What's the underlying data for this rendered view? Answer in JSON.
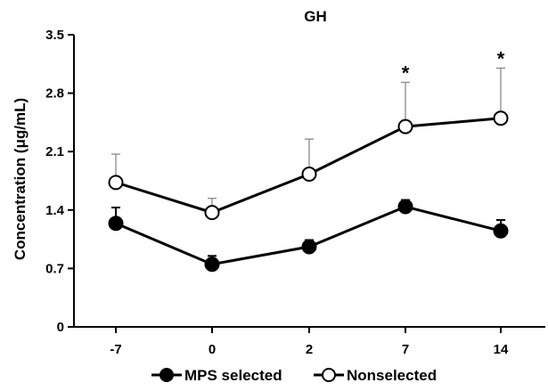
{
  "chart_data": {
    "type": "line",
    "title": "GH",
    "xlabel": "",
    "ylabel": "Concentration (μg/mL)",
    "categories": [
      "-7",
      "0",
      "2",
      "7",
      "14"
    ],
    "ylim": [
      0,
      3.5
    ],
    "yticks": [
      "0",
      "0.7",
      "1.4",
      "2.1",
      "2.8",
      "3.5"
    ],
    "grid": false,
    "legend_position": "bottom",
    "series": [
      {
        "name": "MPS selected",
        "marker": "filled-circle",
        "color": "#000000",
        "values": [
          1.24,
          0.75,
          0.96,
          1.44,
          1.15
        ],
        "error": [
          0.19,
          0.1,
          0.08,
          0.08,
          0.13
        ],
        "error_direction": "up"
      },
      {
        "name": "Nonselected",
        "marker": "open-circle",
        "color": "#000000",
        "values": [
          1.73,
          1.37,
          1.83,
          2.4,
          2.5
        ],
        "error": [
          0.34,
          0.17,
          0.42,
          0.53,
          0.6
        ],
        "error_direction": "up"
      }
    ],
    "annotations": [
      {
        "category": "7",
        "series": "Nonselected",
        "text": "*"
      },
      {
        "category": "14",
        "series": "Nonselected",
        "text": "*"
      }
    ]
  }
}
